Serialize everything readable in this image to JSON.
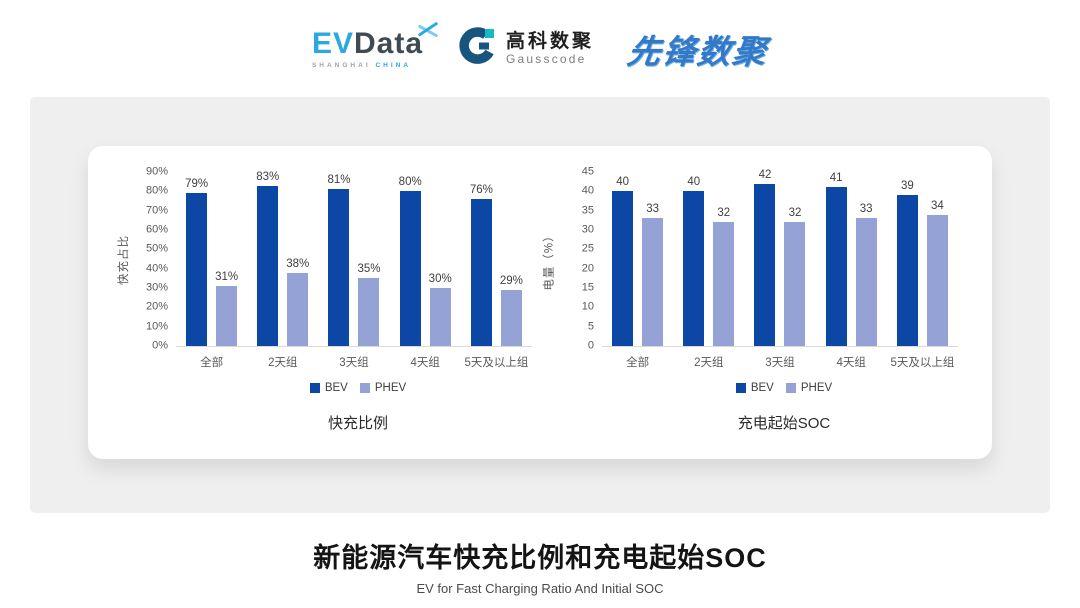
{
  "header": {
    "evdata": {
      "name_part1": "EV",
      "name_part2": "Data",
      "sub_part1": "SHANGHAI",
      "sub_part2": "CHINA"
    },
    "gausscode": {
      "cn": "高科数聚",
      "en": "Gausscode"
    },
    "pioneer": {
      "text": "先锋数聚"
    }
  },
  "colors": {
    "bev": "#0C47A6",
    "phev": "#94A2D6",
    "panel_bg": "#EFEFEF",
    "axis_text": "#595959",
    "evdata_blue": "#2AA9E0",
    "gauss_dark_blue": "#17557E",
    "gauss_teal": "#18B8C4",
    "pioneer_blue": "#3478C8"
  },
  "chart_data": [
    {
      "type": "bar",
      "title": "快充比例",
      "ylabel": "快充占比",
      "xlabel": "",
      "categories": [
        "全部",
        "2天组",
        "3天组",
        "4天组",
        "5天及以上组"
      ],
      "series": [
        {
          "name": "BEV",
          "values": [
            79,
            83,
            81,
            80,
            76
          ],
          "color": "#0C47A6"
        },
        {
          "name": "PHEV",
          "values": [
            31,
            38,
            35,
            30,
            29
          ],
          "color": "#94A2D6"
        }
      ],
      "value_suffix": "%",
      "ylim": [
        0,
        90
      ],
      "yticks": [
        "0%",
        "10%",
        "20%",
        "30%",
        "40%",
        "50%",
        "60%",
        "70%",
        "80%",
        "90%"
      ],
      "grid": false,
      "legend_position": "bottom"
    },
    {
      "type": "bar",
      "title": "充电起始SOC",
      "ylabel": "电量（%）",
      "xlabel": "",
      "categories": [
        "全部",
        "2天组",
        "3天组",
        "4天组",
        "5天及以上组"
      ],
      "series": [
        {
          "name": "BEV",
          "values": [
            40,
            40,
            42,
            41,
            39
          ],
          "color": "#0C47A6"
        },
        {
          "name": "PHEV",
          "values": [
            33,
            32,
            32,
            33,
            34
          ],
          "color": "#94A2D6"
        }
      ],
      "value_suffix": "",
      "ylim": [
        0,
        45
      ],
      "yticks": [
        "0",
        "5",
        "10",
        "15",
        "20",
        "25",
        "30",
        "35",
        "40",
        "45"
      ],
      "grid": false,
      "legend_position": "bottom"
    }
  ],
  "footer": {
    "title": "新能源汽车快充比例和充电起始SOC",
    "subtitle": "EV for Fast Charging Ratio And Initial SOC"
  }
}
